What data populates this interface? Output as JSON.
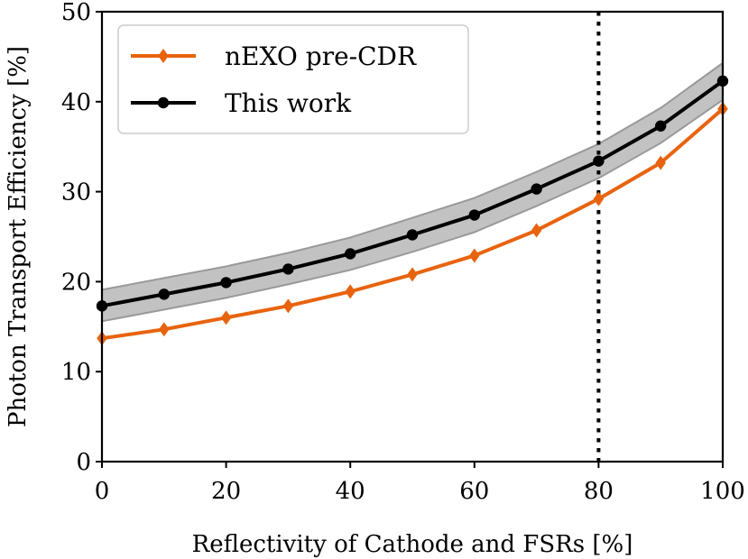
{
  "chart_data": {
    "type": "line",
    "title": "",
    "xlabel": "Reflectivity of Cathode and FSRs [%]",
    "ylabel": "Photon Transport Efficiency [%]",
    "xlim": [
      0,
      100
    ],
    "ylim": [
      0,
      50
    ],
    "x_ticks": [
      0,
      20,
      40,
      60,
      80,
      100
    ],
    "y_ticks": [
      0,
      10,
      20,
      30,
      40,
      50
    ],
    "x_tick_labels": [
      "0",
      "20",
      "40",
      "60",
      "80",
      "100"
    ],
    "y_tick_labels": [
      "0",
      "10",
      "20",
      "30",
      "40",
      "50"
    ],
    "grid": false,
    "legend_position": "top-left",
    "vline_x": 80,
    "x": [
      0,
      10,
      20,
      30,
      40,
      50,
      60,
      70,
      80,
      90,
      100
    ],
    "series": [
      {
        "name": "nEXO pre-CDR",
        "color": "#e8630e",
        "marker": "diamond",
        "values": [
          13.7,
          14.7,
          16.0,
          17.3,
          18.9,
          20.8,
          22.9,
          25.7,
          29.2,
          33.2,
          39.2
        ]
      },
      {
        "name": "This work",
        "color": "#000000",
        "marker": "circle",
        "values": [
          17.3,
          18.6,
          19.9,
          21.4,
          23.1,
          25.2,
          27.4,
          30.3,
          33.4,
          37.3,
          42.3
        ],
        "band_lower": [
          15.6,
          16.9,
          18.2,
          19.7,
          21.3,
          23.3,
          25.5,
          28.4,
          31.5,
          35.4,
          40.2
        ],
        "band_upper": [
          19.1,
          20.4,
          21.7,
          23.2,
          24.9,
          27.1,
          29.3,
          32.2,
          35.3,
          39.3,
          44.3
        ],
        "band_color": "#999999"
      }
    ]
  }
}
